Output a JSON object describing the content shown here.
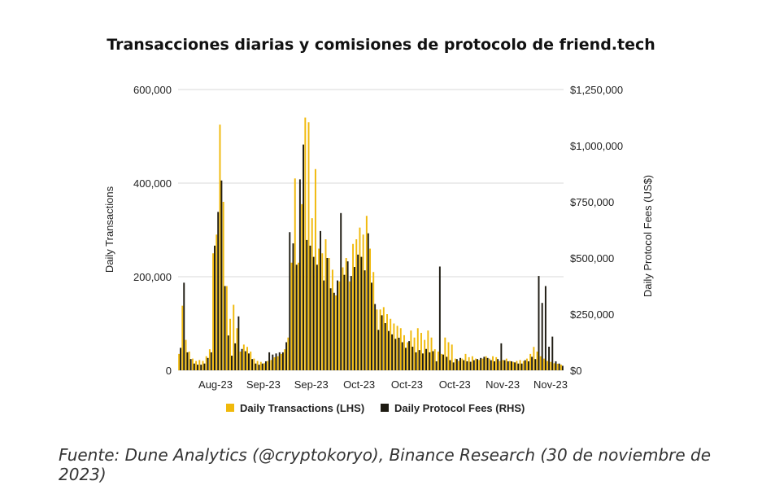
{
  "title": "Transacciones diarias y comisiones de protocolo de friend.tech",
  "source": "Fuente: Dune Analytics (@cryptokoryo), Binance Research (30 de noviembre de 2023)",
  "chart_data": {
    "type": "bar",
    "ylabel_left": "Daily Transactions",
    "ylabel_right": "Daily Protocol Fees (US$)",
    "ylim_left": [
      0,
      600000
    ],
    "ylim_right": [
      0,
      1250000
    ],
    "yticks_left": [
      "0",
      "200,000",
      "400,000",
      "600,000"
    ],
    "yticks_right": [
      "$0",
      "$250,000",
      "$500,000",
      "$750,000",
      "$1,000,000",
      "$1,250,000"
    ],
    "xtick_labels": [
      "Aug-23",
      "Sep-23",
      "Sep-23",
      "Oct-23",
      "Oct-23",
      "Oct-23",
      "Nov-23",
      "Nov-23"
    ],
    "grid": true,
    "legend_position": "bottom",
    "colors": {
      "transactions": "#f0b90b",
      "fees": "#1e1b12",
      "grid": "#d9d9d9"
    },
    "series": [
      {
        "name": "Daily Transactions (LHS)",
        "axis": "left",
        "values": [
          35000,
          138000,
          65000,
          40000,
          25000,
          20000,
          22000,
          20000,
          30000,
          45000,
          250000,
          290000,
          525000,
          360000,
          180000,
          110000,
          140000,
          90000,
          40000,
          55000,
          50000,
          40000,
          25000,
          20000,
          18000,
          15000,
          20000,
          22000,
          28000,
          30000,
          35000,
          45000,
          70000,
          230000,
          410000,
          230000,
          355000,
          540000,
          530000,
          325000,
          430000,
          260000,
          250000,
          280000,
          240000,
          215000,
          160000,
          190000,
          220000,
          240000,
          190000,
          270000,
          280000,
          305000,
          290000,
          330000,
          260000,
          210000,
          130000,
          130000,
          135000,
          120000,
          110000,
          100000,
          95000,
          90000,
          75000,
          60000,
          85000,
          70000,
          90000,
          80000,
          65000,
          85000,
          70000,
          45000,
          40000,
          35000,
          70000,
          60000,
          55000,
          25000,
          20000,
          25000,
          35000,
          28000,
          30000,
          25000,
          22000,
          25000,
          30000,
          25000,
          30000,
          28000,
          20000,
          22000,
          25000,
          20000,
          18000,
          20000,
          22000,
          20000,
          25000,
          35000,
          50000,
          40000,
          30000,
          25000,
          20000,
          18000,
          15000,
          14000,
          12000
        ],
        "text_values": []
      },
      {
        "name": "Daily Protocol Fees (RHS)",
        "axis": "right",
        "values": [
          100000,
          390000,
          80000,
          50000,
          30000,
          25000,
          25000,
          30000,
          55000,
          80000,
          555000,
          705000,
          845000,
          375000,
          155000,
          65000,
          120000,
          240000,
          95000,
          85000,
          75000,
          50000,
          30000,
          25000,
          30000,
          40000,
          80000,
          70000,
          75000,
          80000,
          80000,
          125000,
          615000,
          565000,
          470000,
          850000,
          1005000,
          580000,
          555000,
          505000,
          470000,
          620000,
          400000,
          500000,
          365000,
          345000,
          400000,
          700000,
          425000,
          485000,
          420000,
          460000,
          515000,
          505000,
          445000,
          610000,
          390000,
          295000,
          180000,
          245000,
          210000,
          175000,
          160000,
          140000,
          145000,
          125000,
          100000,
          130000,
          105000,
          80000,
          90000,
          75000,
          95000,
          80000,
          85000,
          40000,
          462000,
          70000,
          60000,
          45000,
          35000,
          50000,
          55000,
          45000,
          40000,
          38000,
          45000,
          50000,
          55000,
          60000,
          55000,
          45000,
          40000,
          50000,
          120000,
          45000,
          40000,
          40000,
          35000,
          30000,
          30000,
          45000,
          40000,
          60000,
          50000,
          420000,
          300000,
          375000,
          105000,
          150000,
          40000,
          30000,
          20000
        ],
        "text_values": []
      }
    ]
  }
}
